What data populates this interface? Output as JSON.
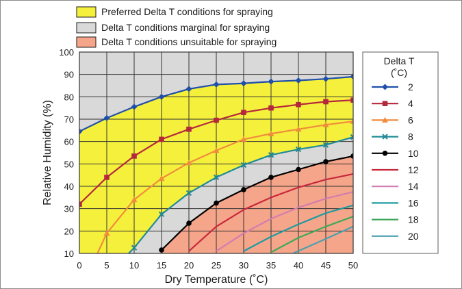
{
  "chart_data": {
    "type": "line",
    "xlabel": "Dry Temperature (˚C)",
    "ylabel": "Relative Humidity (%)",
    "xlim": [
      0,
      50
    ],
    "ylim": [
      10,
      100
    ],
    "x_ticks": [
      0,
      5,
      10,
      15,
      20,
      25,
      30,
      35,
      40,
      45,
      50
    ],
    "y_ticks": [
      10,
      20,
      30,
      40,
      50,
      60,
      70,
      80,
      90,
      100
    ],
    "grid": true,
    "legend_title_line1": "Delta T",
    "legend_title_line2": "(˚C)",
    "zones": [
      {
        "label": "Preferred Delta T conditions for spraying",
        "color": "#f5f03c"
      },
      {
        "label": "Delta T conditions marginal for spraying",
        "color": "#d9d9d9"
      },
      {
        "label": "Delta T conditions unsuitable for spraying",
        "color": "#f5a58a"
      }
    ],
    "series": [
      {
        "name": "2",
        "color": "#1f4fa8",
        "marker": "diamond",
        "x": [
          0,
          5,
          10,
          15,
          20,
          25,
          30,
          35,
          40,
          45,
          50
        ],
        "y": [
          64.5,
          70.5,
          75.5,
          80,
          83.5,
          85.5,
          86,
          86.8,
          87.3,
          88,
          89
        ]
      },
      {
        "name": "4",
        "color": "#b5283c",
        "marker": "square",
        "x": [
          0,
          5,
          10,
          15,
          20,
          25,
          30,
          35,
          40,
          45,
          50
        ],
        "y": [
          32,
          44,
          53.5,
          61,
          65.5,
          69.5,
          73,
          75,
          76.5,
          77.8,
          78.5
        ]
      },
      {
        "name": "6",
        "color": "#f08c3c",
        "marker": "triangle",
        "x": [
          3.3,
          5,
          10,
          15,
          20,
          25,
          30,
          35,
          40,
          45,
          50
        ],
        "y": [
          10,
          19,
          34,
          43.5,
          50.5,
          56,
          61,
          63.5,
          65.5,
          67.5,
          69
        ]
      },
      {
        "name": "8",
        "color": "#1e8a96",
        "marker": "x",
        "x": [
          9,
          10,
          15,
          20,
          25,
          30,
          35,
          40,
          45,
          50
        ],
        "y": [
          10,
          12.5,
          27.5,
          37,
          44,
          49.5,
          54,
          56.5,
          58.5,
          62
        ]
      },
      {
        "name": "10",
        "color": "#000000",
        "marker": "circle",
        "x": [
          15,
          20,
          25,
          30,
          35,
          40,
          45,
          50
        ],
        "y": [
          11.5,
          23.5,
          32.5,
          38.5,
          44,
          47.5,
          51,
          53.5
        ]
      },
      {
        "name": "12",
        "color": "#c8283c",
        "marker": "none",
        "x": [
          20,
          25,
          30,
          35,
          40,
          45,
          50
        ],
        "y": [
          11,
          22,
          29.5,
          35,
          39.5,
          43,
          45.5
        ]
      },
      {
        "name": "14",
        "color": "#d37cb0",
        "marker": "none",
        "x": [
          25,
          30,
          35,
          40,
          45,
          50
        ],
        "y": [
          11,
          19,
          25.5,
          30.5,
          34.5,
          37.5
        ]
      },
      {
        "name": "16",
        "color": "#1e9aa0",
        "marker": "none",
        "x": [
          30,
          35,
          40,
          45,
          50
        ],
        "y": [
          11,
          17.5,
          23,
          28,
          31.5
        ]
      },
      {
        "name": "18",
        "color": "#3fa85a",
        "marker": "none",
        "x": [
          35,
          40,
          45,
          50
        ],
        "y": [
          10.5,
          17,
          22,
          26.5
        ]
      },
      {
        "name": "20",
        "color": "#4aa0b0",
        "marker": "none",
        "x": [
          39,
          45,
          50
        ],
        "y": [
          10,
          16.5,
          22
        ]
      }
    ]
  }
}
